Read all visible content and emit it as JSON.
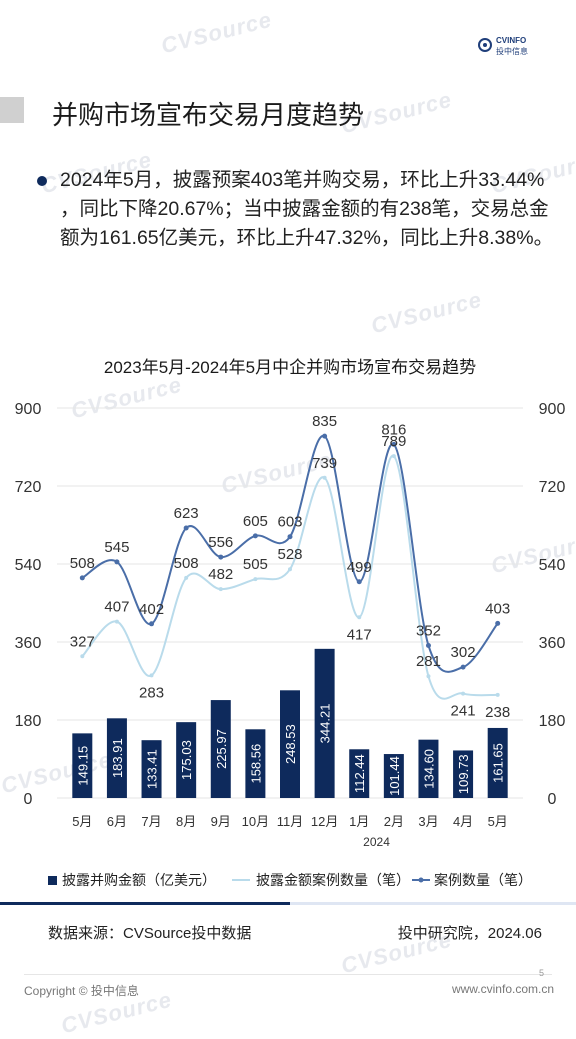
{
  "header": {
    "logo_line1": "CVINFO",
    "logo_line2": "投中信息",
    "title": "并购市场宣布交易月度趋势"
  },
  "summary": {
    "text": "2024年5月，披露预案403笔并购交易，环比上升33.44% ，同比下降20.67%；当中披露金额的有238笔，交易总金额为161.65亿美元，环比上升47.32%，同比上升8.38%。"
  },
  "watermark": {
    "text": "CVSource"
  },
  "colors": {
    "bar": "#0e2a5c",
    "line_light": "#b9dbeb",
    "line_dark": "#4a6ea8",
    "grid": "#e6e6e6"
  },
  "chart_data": {
    "type": "bar",
    "title": "2023年5月-2024年5月中企并购市场宣布交易趋势",
    "categories": [
      "5月",
      "6月",
      "7月",
      "8月",
      "9月",
      "10月",
      "11月",
      "12月",
      "1月",
      "2月",
      "3月",
      "4月",
      "5月"
    ],
    "year_label": "2024",
    "ylim": [
      0,
      900
    ],
    "yticks": [
      0,
      180,
      360,
      540,
      720,
      900
    ],
    "y2lim": [
      0,
      900
    ],
    "y2ticks": [
      0,
      180,
      360,
      540,
      720,
      900
    ],
    "grid": true,
    "legend_position": "bottom",
    "series": [
      {
        "name": "披露并购金额（亿美元）",
        "type": "bar",
        "axis": "left",
        "values": [
          149.15,
          183.91,
          133.41,
          175.03,
          225.97,
          158.56,
          248.53,
          344.21,
          112.44,
          101.44,
          134.6,
          109.73,
          161.65
        ],
        "labels": [
          "149.15",
          "183.91",
          "133.41",
          "175.03",
          "225.97",
          "158.56",
          "248.53",
          "344.21",
          "112.44",
          "101.44",
          "134.60",
          "109.73",
          "161.65"
        ]
      },
      {
        "name": "披露金额案例数量（笔）",
        "type": "line",
        "axis": "right",
        "values": [
          327,
          407,
          283,
          508,
          482,
          505,
          528,
          739,
          417,
          789,
          281,
          241,
          238
        ]
      },
      {
        "name": "案例数量（笔）",
        "type": "line",
        "axis": "right",
        "values": [
          508,
          545,
          402,
          623,
          556,
          605,
          603,
          835,
          499,
          816,
          352,
          302,
          403
        ]
      }
    ]
  },
  "footer": {
    "source": "数据来源：CVSource投中数据",
    "org_date": "投中研究院，2024.06",
    "page": "5",
    "copyright": "Copyright © 投中信息",
    "website": "www.cvinfo.com.cn"
  }
}
